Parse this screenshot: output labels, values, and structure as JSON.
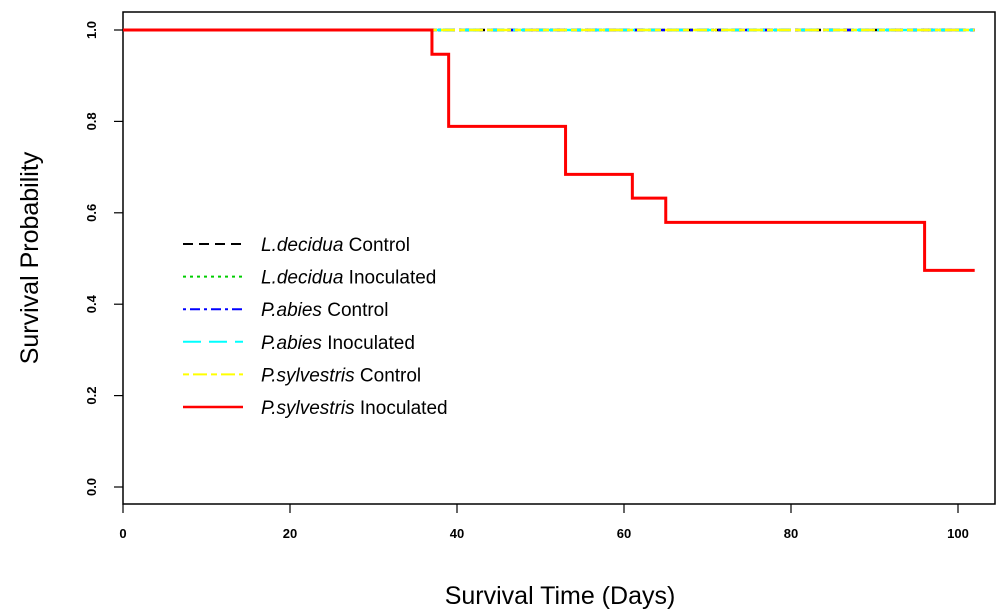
{
  "chart_data": {
    "type": "line",
    "step": true,
    "xlabel": "Survival Time (Days)",
    "ylabel": "Survival Probability",
    "xlim": [
      0,
      104
    ],
    "ylim": [
      0,
      1.0
    ],
    "x_ticks": [
      0,
      20,
      40,
      60,
      80,
      100
    ],
    "y_ticks": [
      0.0,
      0.2,
      0.4,
      0.6,
      0.8,
      1.0
    ],
    "x_tick_labels": [
      "0",
      "20",
      "40",
      "60",
      "80",
      "100"
    ],
    "y_tick_labels": [
      "0.0",
      "0.2",
      "0.4",
      "0.6",
      "0.8",
      "1.0"
    ],
    "grid": false,
    "legend_position": "middle-left",
    "series": [
      {
        "species": "L.decidua",
        "group": "Control",
        "color": "#000000",
        "dash": "dashed",
        "x": [
          0,
          102
        ],
        "y": [
          1.0,
          1.0
        ]
      },
      {
        "species": "L.decidua",
        "group": "Inoculated",
        "color": "#00cd00",
        "dash": "dotted",
        "x": [
          0,
          102
        ],
        "y": [
          1.0,
          1.0
        ]
      },
      {
        "species": "P.abies",
        "group": "Control",
        "color": "#0000ff",
        "dash": "dotdash",
        "x": [
          0,
          102
        ],
        "y": [
          1.0,
          1.0
        ]
      },
      {
        "species": "P.abies",
        "group": "Inoculated",
        "color": "#00ffff",
        "dash": "longdash",
        "x": [
          0,
          102
        ],
        "y": [
          1.0,
          1.0
        ]
      },
      {
        "species": "P.sylvestris",
        "group": "Control",
        "color": "#ffff00",
        "dash": "twodash",
        "x": [
          0,
          102
        ],
        "y": [
          1.0,
          1.0
        ]
      },
      {
        "species": "P.sylvestris",
        "group": "Inoculated",
        "color": "#ff0000",
        "dash": "solid",
        "x": [
          0,
          37,
          39,
          53,
          61,
          65,
          96,
          102
        ],
        "y": [
          1.0,
          0.947,
          0.789,
          0.684,
          0.632,
          0.579,
          0.474,
          0.474
        ]
      }
    ]
  }
}
